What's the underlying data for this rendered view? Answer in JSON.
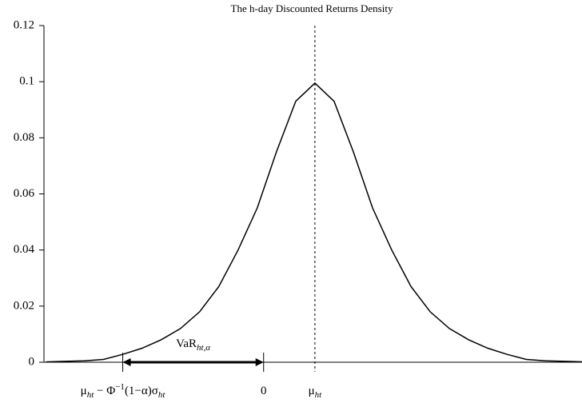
{
  "chart_data": {
    "type": "line",
    "title": "The h-day Discounted Returns Density",
    "x": [
      -14,
      -13,
      -12,
      -11,
      -10,
      -9,
      -8,
      -7,
      -6,
      -5,
      -4,
      -3,
      -2,
      -1,
      0,
      1,
      2,
      3,
      4,
      5,
      6,
      7,
      8,
      9,
      10,
      11,
      12,
      13,
      14
    ],
    "values": [
      0.0001,
      0.0003,
      0.0005,
      0.001,
      0.0028,
      0.005,
      0.008,
      0.012,
      0.018,
      0.027,
      0.04,
      0.055,
      0.075,
      0.093,
      0.0995,
      0.093,
      0.075,
      0.055,
      0.04,
      0.027,
      0.018,
      0.012,
      0.008,
      0.005,
      0.0028,
      0.001,
      0.0005,
      0.0003,
      0.0001
    ],
    "color": "#000000",
    "xlim": [
      -14.1,
      13.9
    ],
    "ylim": [
      0,
      0.12
    ],
    "yticks": [
      0,
      0.02,
      0.04,
      0.06,
      0.08,
      0.1,
      0.12
    ],
    "annotations": [
      {
        "x": -10,
        "parts": [
          {
            "text": "μ"
          },
          {
            "sub": "ht"
          },
          {
            "text": " − Φ"
          },
          {
            "sup": "−1"
          },
          {
            "text": "(1−α)σ"
          },
          {
            "sub": "ht"
          }
        ]
      },
      {
        "x": -2.67,
        "parts": [
          {
            "text": "0"
          }
        ]
      },
      {
        "x": 0,
        "parts": [
          {
            "text": "μ"
          },
          {
            "sub": "ht"
          }
        ]
      },
      {
        "from": -10,
        "to": -2.67,
        "parts": [
          {
            "text": "VaR"
          },
          {
            "sub": "ht,α"
          }
        ]
      }
    ]
  }
}
